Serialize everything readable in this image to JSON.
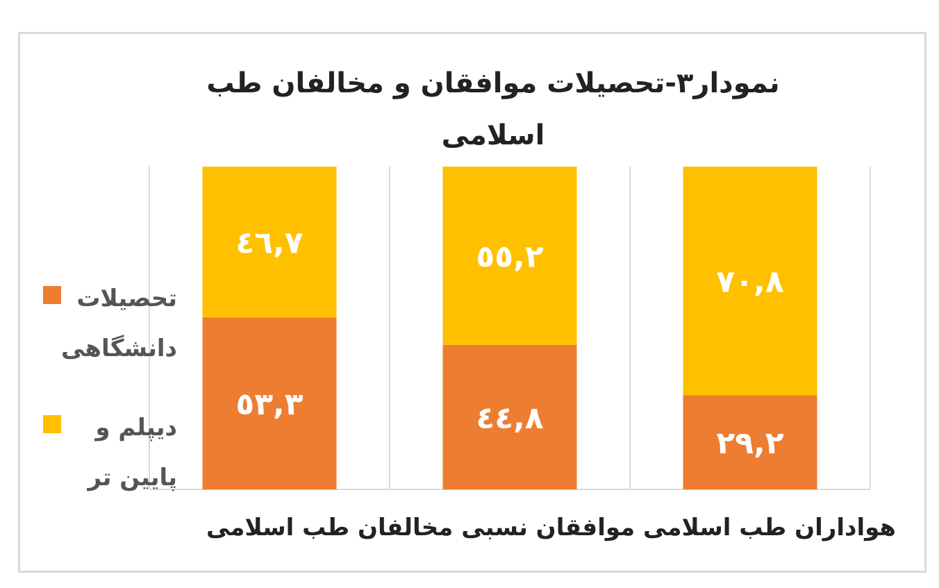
{
  "title_line1": "نمودار۳-تحصیلات موافقان و مخالفان طب",
  "title_line2": "اسلامی",
  "x_axis_text": "هواداران طب اسلامی موافقان نسبی مخالفان طب اسلامی",
  "legend": [
    {
      "label": "تحصیلات دانشگاهی",
      "color": "#ed7d31"
    },
    {
      "label": "دیپلم و پایین تر",
      "color": "#ffc000"
    }
  ],
  "chart_data": {
    "type": "bar",
    "stacked": "100%",
    "title": "نمودار۳-تحصیلات موافقان و مخالفان طب اسلامی",
    "categories": [
      "هواداران طب اسلامی",
      "موافقان نسبی",
      "مخالفان طب اسلامی"
    ],
    "series": [
      {
        "name": "تحصیلات دانشگاهی",
        "color": "#ed7d31",
        "values": [
          29.2,
          44.8,
          53.3
        ],
        "labels": [
          "۲۹,۲",
          "٤٤,۸",
          "٥۳,۳"
        ]
      },
      {
        "name": "دیپلم و پایین تر",
        "color": "#ffc000",
        "values": [
          70.8,
          55.2,
          46.7
        ],
        "labels": [
          "۷۰,۸",
          "٥٥,۲",
          "٤٦,۷"
        ]
      }
    ],
    "ylim": [
      0,
      100
    ],
    "grid": "vertical",
    "legend_position": "left"
  }
}
